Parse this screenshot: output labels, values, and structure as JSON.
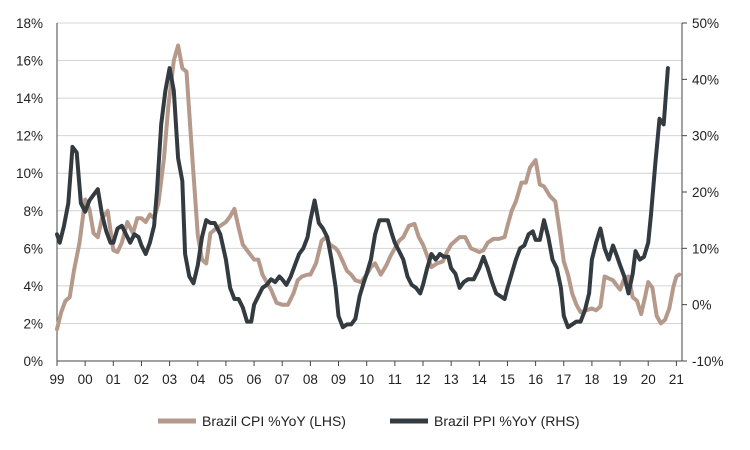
{
  "chart_data": {
    "type": "line",
    "title": "",
    "xlabel": "",
    "ylabel_left": "",
    "ylabel_right": "",
    "x_range": [
      1999.0,
      2021.2
    ],
    "x_tick_values": [
      1999,
      2000,
      2001,
      2002,
      2003,
      2004,
      2005,
      2006,
      2007,
      2008,
      2009,
      2010,
      2011,
      2012,
      2013,
      2014,
      2015,
      2016,
      2017,
      2018,
      2019,
      2020,
      2021
    ],
    "x_tick_labels": [
      "99",
      "00",
      "01",
      "02",
      "03",
      "04",
      "05",
      "06",
      "07",
      "08",
      "09",
      "10",
      "11",
      "12",
      "13",
      "14",
      "15",
      "16",
      "17",
      "18",
      "19",
      "20",
      "21"
    ],
    "y_left": {
      "range": [
        0,
        18
      ],
      "ticks": [
        0,
        2,
        4,
        6,
        8,
        10,
        12,
        14,
        16,
        18
      ],
      "tick_labels": [
        "0%",
        "2%",
        "4%",
        "6%",
        "8%",
        "10%",
        "12%",
        "14%",
        "16%",
        "18%"
      ]
    },
    "y_right": {
      "range": [
        -10,
        50
      ],
      "ticks": [
        -10,
        0,
        10,
        20,
        30,
        40,
        50
      ],
      "tick_labels": [
        "-10%",
        "0%",
        "10%",
        "20%",
        "30%",
        "40%",
        "50%"
      ]
    },
    "grid": "horizontal",
    "legend_position": "bottom",
    "series": [
      {
        "name": "Brazil CPI %YoY (LHS)",
        "axis": "left",
        "color": "#b5998a",
        "points": [
          [
            1999.0,
            1.7
          ],
          [
            1999.15,
            2.6
          ],
          [
            1999.3,
            3.2
          ],
          [
            1999.45,
            3.4
          ],
          [
            1999.6,
            4.8
          ],
          [
            1999.8,
            6.3
          ],
          [
            2000.0,
            8.6
          ],
          [
            2000.15,
            8.1
          ],
          [
            2000.3,
            6.8
          ],
          [
            2000.45,
            6.6
          ],
          [
            2000.6,
            7.6
          ],
          [
            2000.8,
            8.0
          ],
          [
            2001.0,
            5.9
          ],
          [
            2001.15,
            5.8
          ],
          [
            2001.3,
            6.3
          ],
          [
            2001.5,
            7.4
          ],
          [
            2001.7,
            6.8
          ],
          [
            2001.85,
            7.6
          ],
          [
            2002.0,
            7.6
          ],
          [
            2002.15,
            7.4
          ],
          [
            2002.3,
            7.8
          ],
          [
            2002.45,
            7.6
          ],
          [
            2002.6,
            8.4
          ],
          [
            2002.8,
            10.8
          ],
          [
            2002.95,
            13.5
          ],
          [
            2003.15,
            16.0
          ],
          [
            2003.3,
            16.8
          ],
          [
            2003.45,
            15.6
          ],
          [
            2003.6,
            15.4
          ],
          [
            2003.8,
            11.0
          ],
          [
            2004.0,
            6.7
          ],
          [
            2004.15,
            5.4
          ],
          [
            2004.3,
            5.2
          ],
          [
            2004.45,
            6.8
          ],
          [
            2004.6,
            7.0
          ],
          [
            2004.8,
            7.2
          ],
          [
            2005.0,
            7.4
          ],
          [
            2005.15,
            7.7
          ],
          [
            2005.3,
            8.1
          ],
          [
            2005.45,
            7.1
          ],
          [
            2005.6,
            6.2
          ],
          [
            2005.8,
            5.8
          ],
          [
            2006.0,
            5.4
          ],
          [
            2006.15,
            5.4
          ],
          [
            2006.3,
            4.6
          ],
          [
            2006.45,
            4.2
          ],
          [
            2006.6,
            3.8
          ],
          [
            2006.8,
            3.1
          ],
          [
            2007.0,
            3.0
          ],
          [
            2007.2,
            3.0
          ],
          [
            2007.4,
            3.6
          ],
          [
            2007.55,
            4.3
          ],
          [
            2007.7,
            4.5
          ],
          [
            2007.9,
            4.6
          ],
          [
            2008.0,
            4.6
          ],
          [
            2008.2,
            5.2
          ],
          [
            2008.4,
            6.4
          ],
          [
            2008.55,
            6.6
          ],
          [
            2008.7,
            6.2
          ],
          [
            2008.9,
            6.0
          ],
          [
            2009.0,
            5.8
          ],
          [
            2009.15,
            5.3
          ],
          [
            2009.3,
            4.8
          ],
          [
            2009.45,
            4.6
          ],
          [
            2009.6,
            4.3
          ],
          [
            2009.8,
            4.2
          ],
          [
            2010.0,
            4.6
          ],
          [
            2010.15,
            5.0
          ],
          [
            2010.3,
            5.2
          ],
          [
            2010.5,
            4.6
          ],
          [
            2010.7,
            5.1
          ],
          [
            2010.85,
            5.6
          ],
          [
            2011.0,
            6.0
          ],
          [
            2011.15,
            6.4
          ],
          [
            2011.3,
            6.6
          ],
          [
            2011.5,
            7.2
          ],
          [
            2011.7,
            7.3
          ],
          [
            2011.85,
            6.6
          ],
          [
            2012.0,
            6.2
          ],
          [
            2012.15,
            5.6
          ],
          [
            2012.3,
            5.0
          ],
          [
            2012.5,
            5.2
          ],
          [
            2012.7,
            5.3
          ],
          [
            2012.85,
            5.8
          ],
          [
            2013.0,
            6.2
          ],
          [
            2013.15,
            6.4
          ],
          [
            2013.3,
            6.6
          ],
          [
            2013.5,
            6.6
          ],
          [
            2013.7,
            6.0
          ],
          [
            2013.85,
            5.9
          ],
          [
            2014.0,
            5.8
          ],
          [
            2014.15,
            5.9
          ],
          [
            2014.3,
            6.3
          ],
          [
            2014.5,
            6.5
          ],
          [
            2014.7,
            6.5
          ],
          [
            2014.9,
            6.6
          ],
          [
            2015.0,
            7.2
          ],
          [
            2015.15,
            8.0
          ],
          [
            2015.3,
            8.5
          ],
          [
            2015.5,
            9.5
          ],
          [
            2015.65,
            9.5
          ],
          [
            2015.8,
            10.3
          ],
          [
            2016.0,
            10.7
          ],
          [
            2016.15,
            9.4
          ],
          [
            2016.3,
            9.3
          ],
          [
            2016.5,
            8.8
          ],
          [
            2016.7,
            8.5
          ],
          [
            2016.85,
            7.0
          ],
          [
            2017.0,
            5.3
          ],
          [
            2017.15,
            4.6
          ],
          [
            2017.3,
            3.6
          ],
          [
            2017.45,
            3.0
          ],
          [
            2017.6,
            2.6
          ],
          [
            2017.8,
            2.7
          ],
          [
            2018.0,
            2.8
          ],
          [
            2018.15,
            2.7
          ],
          [
            2018.3,
            2.9
          ],
          [
            2018.45,
            4.5
          ],
          [
            2018.6,
            4.4
          ],
          [
            2018.75,
            4.3
          ],
          [
            2018.9,
            4.0
          ],
          [
            2019.0,
            3.8
          ],
          [
            2019.15,
            4.4
          ],
          [
            2019.3,
            4.5
          ],
          [
            2019.45,
            3.4
          ],
          [
            2019.6,
            3.2
          ],
          [
            2019.75,
            2.5
          ],
          [
            2019.9,
            3.5
          ],
          [
            2020.0,
            4.2
          ],
          [
            2020.15,
            3.9
          ],
          [
            2020.3,
            2.4
          ],
          [
            2020.45,
            2.0
          ],
          [
            2020.6,
            2.2
          ],
          [
            2020.75,
            2.8
          ],
          [
            2020.9,
            4.0
          ],
          [
            2021.0,
            4.5
          ],
          [
            2021.1,
            4.6
          ]
        ]
      },
      {
        "name": "Brazil PPI %YoY (RHS)",
        "axis": "right",
        "color": "#333b41",
        "points": [
          [
            1999.0,
            12.5
          ],
          [
            1999.1,
            11.0
          ],
          [
            1999.25,
            14.0
          ],
          [
            1999.4,
            18.0
          ],
          [
            1999.55,
            28.0
          ],
          [
            1999.7,
            27.0
          ],
          [
            1999.85,
            18.0
          ],
          [
            2000.0,
            16.5
          ],
          [
            2000.15,
            18.5
          ],
          [
            2000.3,
            19.5
          ],
          [
            2000.45,
            20.5
          ],
          [
            2000.6,
            16.0
          ],
          [
            2000.75,
            13.0
          ],
          [
            2000.9,
            11.0
          ],
          [
            2001.0,
            11.0
          ],
          [
            2001.15,
            13.5
          ],
          [
            2001.3,
            14.0
          ],
          [
            2001.45,
            12.5
          ],
          [
            2001.6,
            11.0
          ],
          [
            2001.75,
            12.5
          ],
          [
            2001.9,
            12.0
          ],
          [
            2002.0,
            10.5
          ],
          [
            2002.15,
            9.0
          ],
          [
            2002.3,
            11.0
          ],
          [
            2002.45,
            14.0
          ],
          [
            2002.55,
            20.0
          ],
          [
            2002.7,
            32.0
          ],
          [
            2002.85,
            38.0
          ],
          [
            2003.0,
            42.0
          ],
          [
            2003.15,
            38.0
          ],
          [
            2003.3,
            26.0
          ],
          [
            2003.45,
            22.0
          ],
          [
            2003.55,
            9.0
          ],
          [
            2003.7,
            5.0
          ],
          [
            2003.85,
            3.8
          ],
          [
            2004.0,
            7.0
          ],
          [
            2004.15,
            12.0
          ],
          [
            2004.3,
            15.0
          ],
          [
            2004.45,
            14.5
          ],
          [
            2004.6,
            14.5
          ],
          [
            2004.8,
            12.5
          ],
          [
            2005.0,
            8.0
          ],
          [
            2005.15,
            3.0
          ],
          [
            2005.3,
            1.0
          ],
          [
            2005.45,
            1.0
          ],
          [
            2005.6,
            -0.5
          ],
          [
            2005.75,
            -3.0
          ],
          [
            2005.9,
            -3.0
          ],
          [
            2006.0,
            0.0
          ],
          [
            2006.15,
            1.5
          ],
          [
            2006.3,
            3.0
          ],
          [
            2006.45,
            3.5
          ],
          [
            2006.6,
            4.5
          ],
          [
            2006.75,
            4.0
          ],
          [
            2006.9,
            5.0
          ],
          [
            2007.0,
            4.5
          ],
          [
            2007.15,
            3.5
          ],
          [
            2007.3,
            5.0
          ],
          [
            2007.45,
            7.0
          ],
          [
            2007.6,
            9.0
          ],
          [
            2007.75,
            10.0
          ],
          [
            2007.9,
            12.0
          ],
          [
            2008.0,
            15.0
          ],
          [
            2008.15,
            18.5
          ],
          [
            2008.3,
            14.5
          ],
          [
            2008.45,
            13.5
          ],
          [
            2008.6,
            12.0
          ],
          [
            2008.75,
            8.0
          ],
          [
            2008.9,
            3.0
          ],
          [
            2009.0,
            -2.0
          ],
          [
            2009.15,
            -4.0
          ],
          [
            2009.3,
            -3.5
          ],
          [
            2009.45,
            -3.5
          ],
          [
            2009.6,
            -2.5
          ],
          [
            2009.75,
            1.5
          ],
          [
            2009.9,
            4.0
          ],
          [
            2010.0,
            5.5
          ],
          [
            2010.15,
            8.0
          ],
          [
            2010.3,
            12.5
          ],
          [
            2010.45,
            15.0
          ],
          [
            2010.6,
            15.0
          ],
          [
            2010.75,
            15.0
          ],
          [
            2010.9,
            12.5
          ],
          [
            2011.0,
            11.0
          ],
          [
            2011.15,
            9.5
          ],
          [
            2011.3,
            8.0
          ],
          [
            2011.45,
            5.0
          ],
          [
            2011.6,
            3.5
          ],
          [
            2011.75,
            3.0
          ],
          [
            2011.9,
            2.0
          ],
          [
            2012.0,
            3.5
          ],
          [
            2012.15,
            6.5
          ],
          [
            2012.3,
            9.0
          ],
          [
            2012.45,
            8.0
          ],
          [
            2012.6,
            9.0
          ],
          [
            2012.75,
            8.5
          ],
          [
            2012.9,
            8.5
          ],
          [
            2013.0,
            6.5
          ],
          [
            2013.15,
            5.5
          ],
          [
            2013.3,
            3.0
          ],
          [
            2013.45,
            4.0
          ],
          [
            2013.6,
            4.5
          ],
          [
            2013.8,
            4.5
          ],
          [
            2014.0,
            6.5
          ],
          [
            2014.15,
            8.5
          ],
          [
            2014.3,
            6.5
          ],
          [
            2014.45,
            4.0
          ],
          [
            2014.6,
            2.0
          ],
          [
            2014.75,
            1.5
          ],
          [
            2014.9,
            1.0
          ],
          [
            2015.0,
            3.0
          ],
          [
            2015.15,
            5.5
          ],
          [
            2015.3,
            8.0
          ],
          [
            2015.45,
            10.0
          ],
          [
            2015.6,
            10.5
          ],
          [
            2015.75,
            12.5
          ],
          [
            2015.9,
            13.0
          ],
          [
            2016.0,
            11.5
          ],
          [
            2016.15,
            11.5
          ],
          [
            2016.3,
            15.0
          ],
          [
            2016.45,
            12.0
          ],
          [
            2016.6,
            8.0
          ],
          [
            2016.75,
            6.5
          ],
          [
            2016.9,
            3.0
          ],
          [
            2017.0,
            -2.0
          ],
          [
            2017.15,
            -4.0
          ],
          [
            2017.3,
            -3.5
          ],
          [
            2017.45,
            -3.0
          ],
          [
            2017.6,
            -3.0
          ],
          [
            2017.75,
            -1.0
          ],
          [
            2017.9,
            2.0
          ],
          [
            2018.0,
            8.0
          ],
          [
            2018.15,
            11.0
          ],
          [
            2018.3,
            13.5
          ],
          [
            2018.45,
            10.0
          ],
          [
            2018.6,
            8.0
          ],
          [
            2018.75,
            10.5
          ],
          [
            2018.9,
            8.5
          ],
          [
            2019.0,
            7.0
          ],
          [
            2019.15,
            5.0
          ],
          [
            2019.3,
            2.0
          ],
          [
            2019.45,
            5.5
          ],
          [
            2019.55,
            9.5
          ],
          [
            2019.7,
            8.0
          ],
          [
            2019.85,
            8.5
          ],
          [
            2020.0,
            11.0
          ],
          [
            2020.1,
            16.0
          ],
          [
            2020.25,
            25.0
          ],
          [
            2020.4,
            33.0
          ],
          [
            2020.55,
            32.0
          ],
          [
            2020.7,
            42.0
          ]
        ]
      }
    ]
  }
}
